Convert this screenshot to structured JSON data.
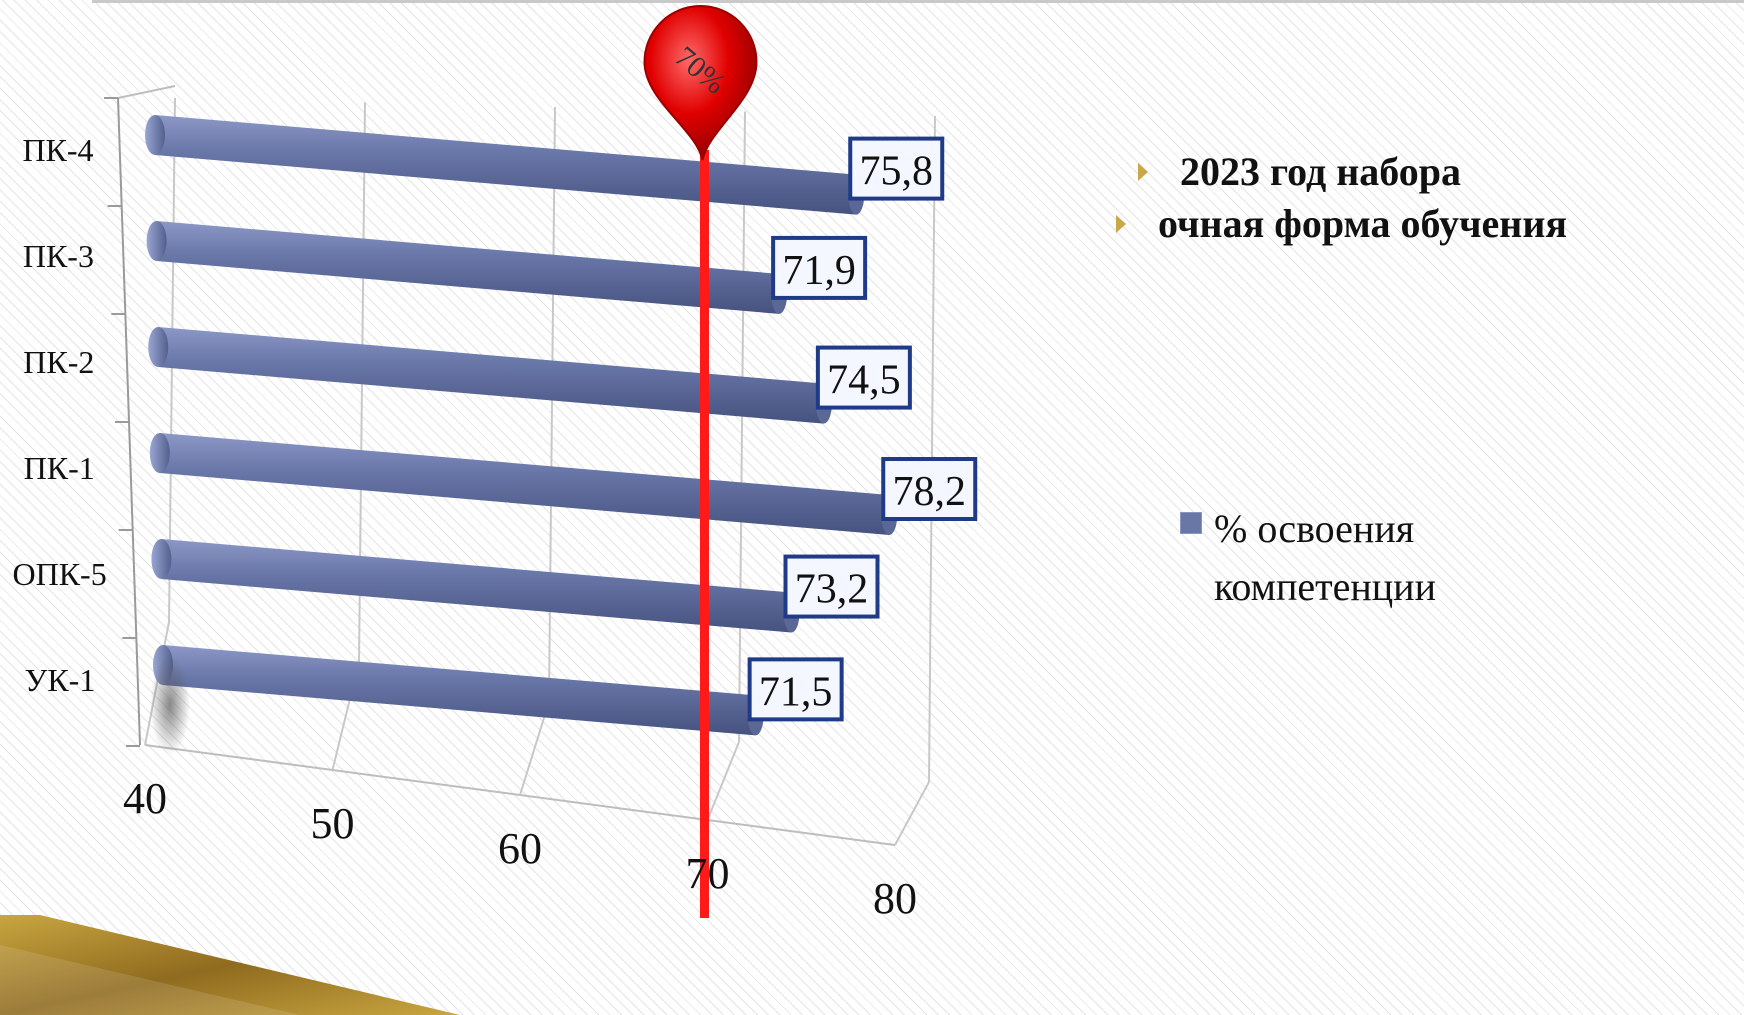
{
  "bullets": [
    "2023 год набора",
    "очная форма обучения"
  ],
  "marker_label": "70%",
  "colors": {
    "bar": "#6877a6",
    "marker": "#e00000",
    "bullet_mark": "#c9a84a",
    "label_border": "#1f3b88"
  },
  "chart_data": {
    "type": "bar",
    "orientation": "horizontal",
    "categories": [
      "УК-1",
      "ОПК-5",
      "ПК-1",
      "ПК-2",
      "ПК-3",
      "ПК-4"
    ],
    "series": [
      {
        "name": "% освоения компетенции",
        "values": [
          71.5,
          73.2,
          78.2,
          74.5,
          71.9,
          75.8
        ]
      }
    ],
    "value_labels": [
      "71,5",
      "73,2",
      "78,2",
      "74,5",
      "71,9",
      "75,8"
    ],
    "xticks": [
      "40",
      "50",
      "60",
      "70",
      "80"
    ],
    "xlim": [
      40,
      80
    ],
    "reference_line": {
      "value": 70,
      "label": "70%"
    },
    "legend_position": "right",
    "grid": true
  }
}
